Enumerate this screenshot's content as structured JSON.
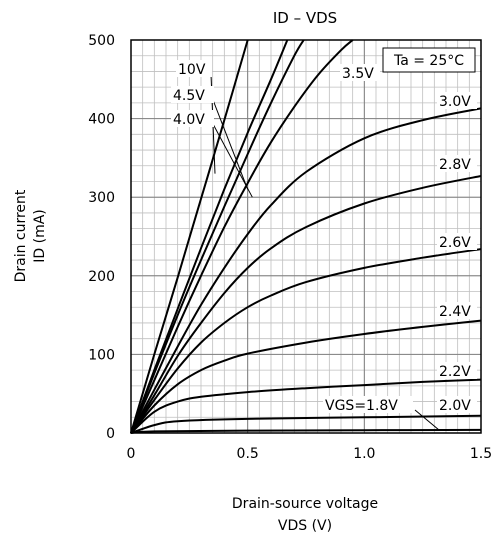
{
  "chart_data": {
    "type": "line",
    "title": "ID – VDS",
    "xlabel_line1": "Drain-source voltage",
    "xlabel_line2": "VDS (V)",
    "ylabel_line1": "Drain current",
    "ylabel_line2": "ID (mA)",
    "xlim": [
      0,
      1.5
    ],
    "ylim": [
      0,
      500
    ],
    "x_ticks": [
      0,
      0.5,
      1.0,
      1.5
    ],
    "x_tick_labels": [
      "0",
      "0.5",
      "1.0",
      "1.5"
    ],
    "y_ticks": [
      0,
      100,
      200,
      300,
      400,
      500
    ],
    "y_tick_labels": [
      "0",
      "100",
      "200",
      "300",
      "400",
      "500"
    ],
    "grid": true,
    "annotation": "Ta = 25°C",
    "series": [
      {
        "name": "VGS=1.8V",
        "x": [
          0,
          0.1,
          0.5,
          1.0,
          1.5
        ],
        "y": [
          0,
          2,
          3,
          3.5,
          4
        ]
      },
      {
        "name": "2.0V",
        "x": [
          0,
          0.1,
          0.2,
          0.5,
          1.0,
          1.5
        ],
        "y": [
          0,
          10,
          15,
          18,
          20,
          22
        ]
      },
      {
        "name": "2.2V",
        "x": [
          0,
          0.1,
          0.2,
          0.3,
          0.5,
          0.75,
          1.0,
          1.25,
          1.5
        ],
        "y": [
          0,
          27,
          40,
          46,
          52,
          57,
          61,
          65,
          68
        ]
      },
      {
        "name": "2.4V",
        "x": [
          0,
          0.1,
          0.2,
          0.3,
          0.4,
          0.5,
          0.75,
          1.0,
          1.25,
          1.5
        ],
        "y": [
          0,
          35,
          62,
          80,
          92,
          101,
          115,
          126,
          135,
          143
        ]
      },
      {
        "name": "2.6V",
        "x": [
          0,
          0.1,
          0.2,
          0.3,
          0.4,
          0.5,
          0.6,
          0.75,
          1.0,
          1.25,
          1.5
        ],
        "y": [
          0,
          42,
          82,
          115,
          140,
          160,
          175,
          192,
          210,
          223,
          234
        ]
      },
      {
        "name": "2.8V",
        "x": [
          0,
          0.1,
          0.2,
          0.3,
          0.4,
          0.5,
          0.6,
          0.75,
          1.0,
          1.25,
          1.5
        ],
        "y": [
          0,
          48,
          98,
          140,
          178,
          210,
          235,
          262,
          292,
          312,
          327
        ]
      },
      {
        "name": "3.0V",
        "x": [
          0,
          0.1,
          0.2,
          0.3,
          0.4,
          0.5,
          0.6,
          0.75,
          1.0,
          1.25,
          1.5
        ],
        "y": [
          0,
          55,
          110,
          163,
          210,
          253,
          290,
          332,
          375,
          398,
          413
        ]
      },
      {
        "name": "3.5V",
        "x": [
          0,
          0.1,
          0.2,
          0.3,
          0.4,
          0.5,
          0.6,
          0.7,
          0.8,
          0.9,
          0.95
        ],
        "y": [
          0,
          67,
          135,
          200,
          262,
          318,
          370,
          415,
          455,
          487,
          500
        ]
      },
      {
        "name": "4.0V",
        "x": [
          0,
          0.1,
          0.2,
          0.3,
          0.4,
          0.5,
          0.6,
          0.7,
          0.74
        ],
        "y": [
          0,
          76,
          150,
          220,
          288,
          355,
          420,
          480,
          500
        ]
      },
      {
        "name": "4.5V",
        "x": [
          0,
          0.1,
          0.2,
          0.3,
          0.4,
          0.5,
          0.6,
          0.67
        ],
        "y": [
          0,
          80,
          158,
          235,
          310,
          382,
          450,
          500
        ]
      },
      {
        "name": "10V",
        "x": [
          0,
          0.1,
          0.2,
          0.3,
          0.4,
          0.5
        ],
        "y": [
          0,
          100,
          198,
          298,
          398,
          500
        ]
      }
    ]
  }
}
